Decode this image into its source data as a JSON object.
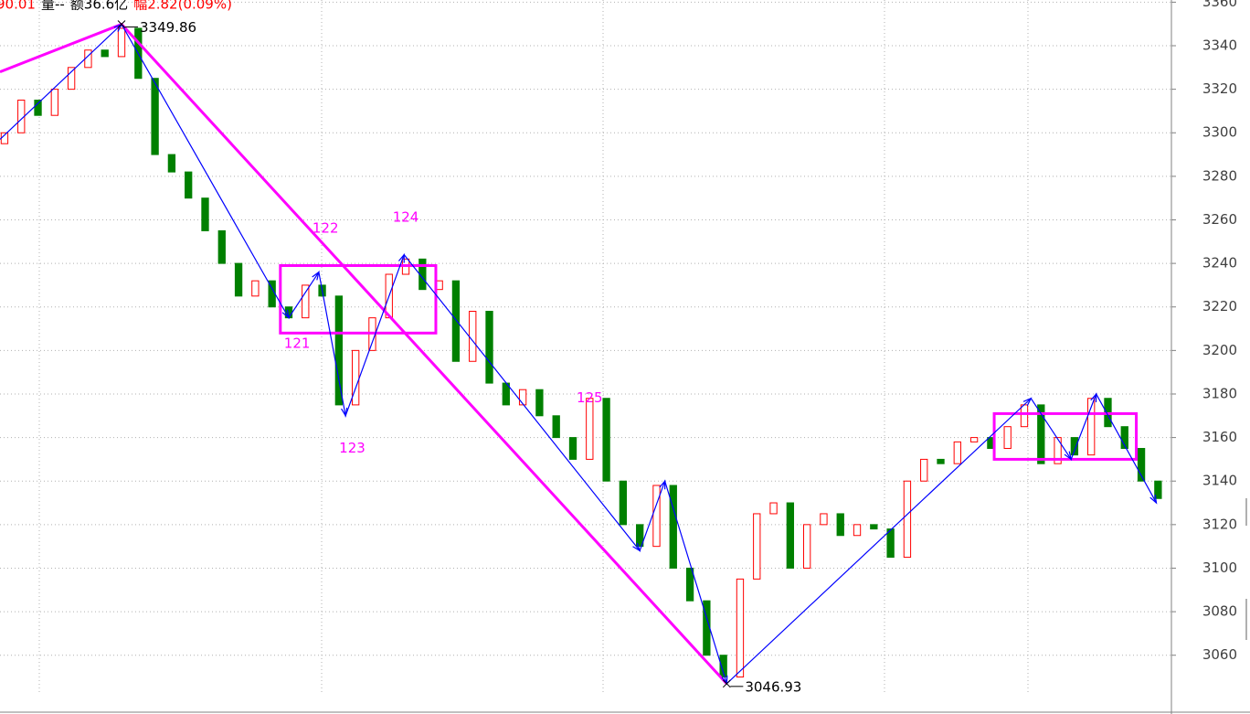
{
  "chart_data": {
    "type": "candlestick",
    "header": [
      {
        "text": "90.01",
        "color": "#ff0000"
      },
      {
        "text": "量--",
        "color": "#000000"
      },
      {
        "text": "额36.6亿",
        "color": "#000000"
      },
      {
        "text": "幅2.82(0.09%)",
        "color": "#ff0000"
      }
    ],
    "open": [
      3295,
      3300,
      3315,
      3308,
      3320,
      3330,
      3338,
      3335,
      3348,
      3325,
      3290,
      3282,
      3270,
      3255,
      3240,
      3225,
      3232,
      3220,
      3215,
      3230,
      3225,
      3175,
      3200,
      3215,
      3235,
      3242,
      3228,
      3232,
      3195,
      3218,
      3185,
      3175,
      3182,
      3170,
      3160,
      3150,
      3178,
      3140,
      3120,
      3110,
      3138,
      3100,
      3085,
      3060,
      3050,
      3095,
      3125,
      3130,
      3100,
      3120,
      3125,
      3115,
      3120,
      3118,
      3105,
      3140,
      3150,
      3148,
      3158,
      3160,
      3155,
      3165,
      3175,
      3148,
      3160,
      3152,
      3178,
      3165,
      3155,
      3140
    ],
    "close": [
      3300,
      3315,
      3308,
      3320,
      3330,
      3338,
      3335,
      3348,
      3325,
      3290,
      3282,
      3270,
      3255,
      3240,
      3225,
      3232,
      3220,
      3215,
      3230,
      3225,
      3175,
      3200,
      3215,
      3235,
      3242,
      3228,
      3232,
      3195,
      3218,
      3185,
      3175,
      3182,
      3170,
      3160,
      3150,
      3178,
      3140,
      3120,
      3110,
      3138,
      3100,
      3085,
      3060,
      3050,
      3095,
      3125,
      3130,
      3100,
      3120,
      3125,
      3115,
      3120,
      3118,
      3105,
      3140,
      3150,
      3148,
      3158,
      3160,
      3155,
      3165,
      3175,
      3148,
      3160,
      3152,
      3178,
      3165,
      3155,
      3140,
      3132
    ],
    "up_color": "#ff0000",
    "down_color": "#008000",
    "xlim": [
      -0.27,
      69.8
    ],
    "ylim": [
      3033,
      3361
    ],
    "yticks": [
      3060,
      3080,
      3100,
      3120,
      3140,
      3160,
      3180,
      3200,
      3220,
      3240,
      3260,
      3280,
      3300,
      3320,
      3340,
      3360
    ],
    "grid": true,
    "zigzag": {
      "color": "#0000ff",
      "x": [
        -0.27,
        7,
        17,
        18.8,
        20.4,
        23.9,
        38,
        39.5,
        43.2,
        61.4,
        63.8,
        65.3,
        68.9
      ],
      "values": [
        3297,
        3349.86,
        3215,
        3236,
        3170,
        3244,
        3108,
        3140,
        3046.93,
        3178,
        3150,
        3180,
        3130
      ]
    },
    "trend": {
      "color": "#ff00ff",
      "x": [
        -0.27,
        7,
        43.2
      ],
      "values": [
        3328,
        3349.86,
        3046.93
      ]
    },
    "boxes": [
      {
        "color": "#ff00ff",
        "x": [
          16.5,
          25.8
        ],
        "y": [
          3208,
          3239
        ]
      },
      {
        "color": "#ff00ff",
        "x": [
          59.2,
          67.7
        ],
        "y": [
          3150,
          3171
        ]
      }
    ],
    "annotations": [
      {
        "text": "121",
        "x": 17.5,
        "y": 3203
      },
      {
        "text": "122",
        "x": 19.2,
        "y": 3256
      },
      {
        "text": "123",
        "x": 20.8,
        "y": 3155
      },
      {
        "text": "124",
        "x": 24,
        "y": 3261
      },
      {
        "text": "125",
        "x": 35,
        "y": 3178
      }
    ],
    "point_labels": [
      {
        "x": 7,
        "value": 3349.86
      },
      {
        "x": 43.2,
        "value": 3046.93
      }
    ]
  }
}
